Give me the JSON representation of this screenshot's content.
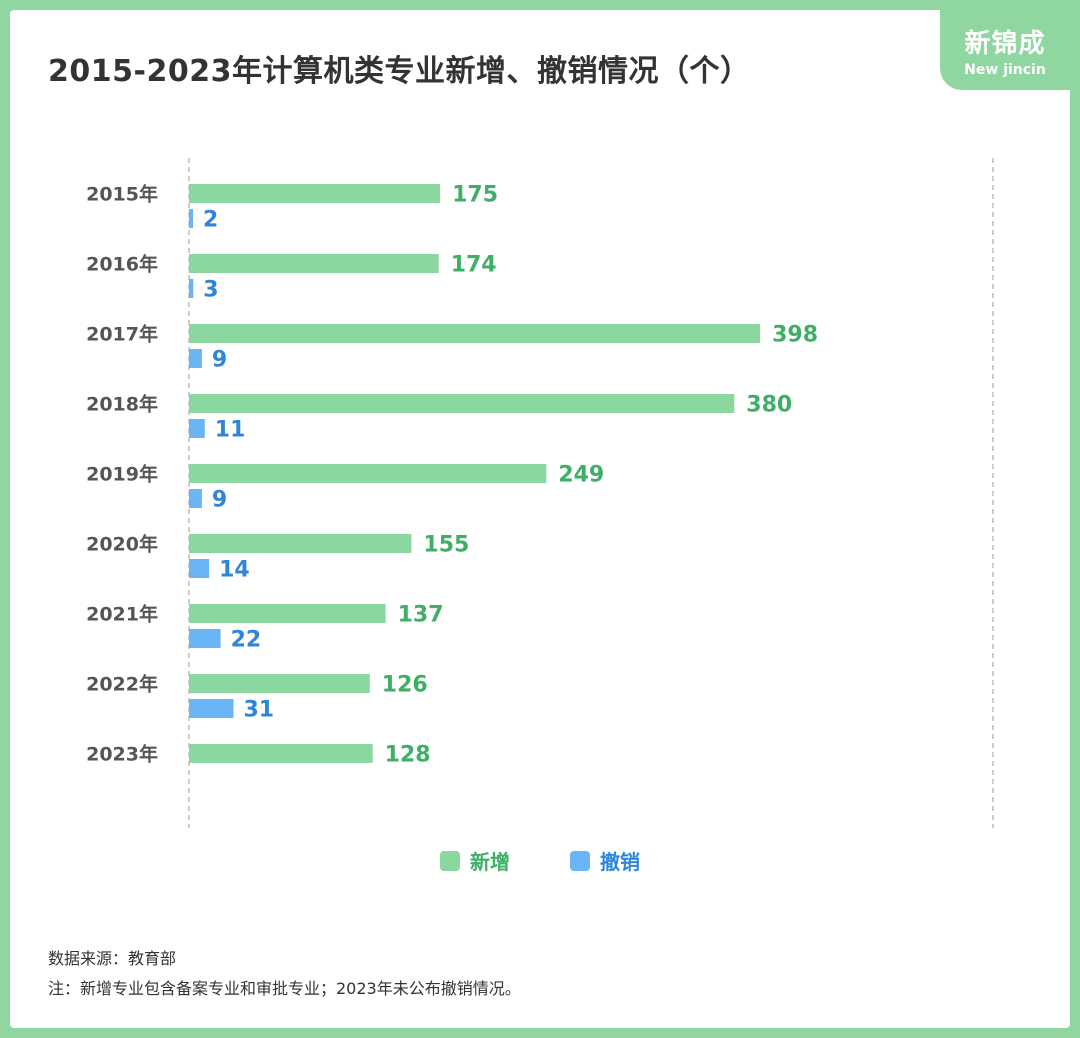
{
  "title": "2015-2023年计算机类专业新增、撤销情况（个）",
  "logo": {
    "cn": "新锦成",
    "en": "New jincin"
  },
  "colors": {
    "added": "#8cd6a0",
    "added_label": "#3fae67",
    "revoked": "#6ab5f5",
    "revoked_label": "#2f86d8"
  },
  "chart_data": {
    "type": "bar",
    "orientation": "horizontal",
    "categories": [
      "2015年",
      "2016年",
      "2017年",
      "2018年",
      "2019年",
      "2020年",
      "2021年",
      "2022年",
      "2023年"
    ],
    "series": [
      {
        "name": "新增",
        "values": [
          175,
          174,
          398,
          380,
          249,
          155,
          137,
          126,
          128
        ]
      },
      {
        "name": "撤销",
        "values": [
          2,
          3,
          9,
          11,
          9,
          14,
          22,
          31,
          null
        ]
      }
    ],
    "xlim": [
      0,
      560
    ],
    "grid": false,
    "legend_position": "bottom"
  },
  "notes": {
    "source": "数据来源：教育部",
    "note": "注：新增专业包含备案专业和审批专业；2023年未公布撤销情况。"
  }
}
